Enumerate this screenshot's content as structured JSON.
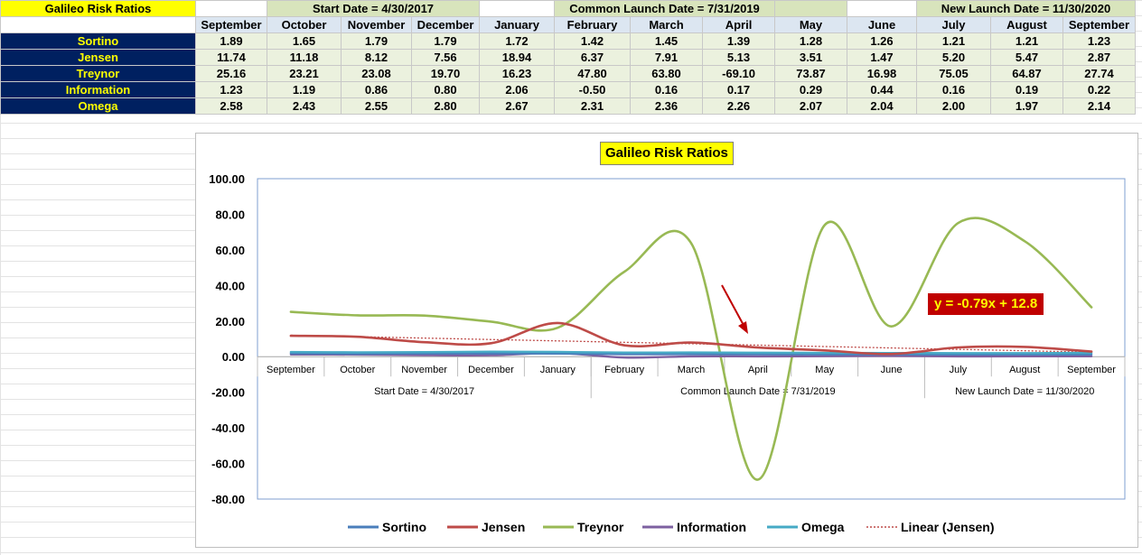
{
  "sheet": {
    "title": "Galileo Risk Ratios",
    "date_bands": {
      "start": "Start Date = 4/30/2017",
      "common": "Common Launch Date = 7/31/2019",
      "new": "New Launch Date = 11/30/2020"
    },
    "months": [
      "September",
      "October",
      "November",
      "December",
      "January",
      "February",
      "March",
      "April",
      "May",
      "June",
      "July",
      "August",
      "September"
    ],
    "rows": [
      {
        "name": "Sortino",
        "values": [
          "1.89",
          "1.65",
          "1.79",
          "1.79",
          "1.72",
          "1.42",
          "1.45",
          "1.39",
          "1.28",
          "1.26",
          "1.21",
          "1.21",
          "1.23"
        ]
      },
      {
        "name": "Jensen",
        "values": [
          "11.74",
          "11.18",
          "8.12",
          "7.56",
          "18.94",
          "6.37",
          "7.91",
          "5.13",
          "3.51",
          "1.47",
          "5.20",
          "5.47",
          "2.87"
        ]
      },
      {
        "name": "Treynor",
        "values": [
          "25.16",
          "23.21",
          "23.08",
          "19.70",
          "16.23",
          "47.80",
          "63.80",
          "-69.10",
          "73.87",
          "16.98",
          "75.05",
          "64.87",
          "27.74"
        ]
      },
      {
        "name": "Information",
        "values": [
          "1.23",
          "1.19",
          "0.86",
          "0.80",
          "2.06",
          "-0.50",
          "0.16",
          "0.17",
          "0.29",
          "0.44",
          "0.16",
          "0.19",
          "0.22"
        ]
      },
      {
        "name": "Omega",
        "values": [
          "2.58",
          "2.43",
          "2.55",
          "2.80",
          "2.67",
          "2.31",
          "2.36",
          "2.26",
          "2.07",
          "2.04",
          "2.00",
          "1.97",
          "2.14"
        ]
      }
    ]
  },
  "chart_data": {
    "type": "line",
    "title": "Galileo Risk Ratios",
    "categories": [
      "September",
      "October",
      "November",
      "December",
      "January",
      "February",
      "March",
      "April",
      "May",
      "June",
      "July",
      "August",
      "September"
    ],
    "category_groups": [
      {
        "label": "Start Date = 4/30/2017",
        "span": 5
      },
      {
        "label": "Common Launch Date = 7/31/2019",
        "span": 5
      },
      {
        "label": "New Launch Date = 11/30/2020",
        "span": 3
      }
    ],
    "series": [
      {
        "name": "Sortino",
        "color": "#4a7ebb",
        "values": [
          1.89,
          1.65,
          1.79,
          1.79,
          1.72,
          1.42,
          1.45,
          1.39,
          1.28,
          1.26,
          1.21,
          1.21,
          1.23
        ]
      },
      {
        "name": "Jensen",
        "color": "#be4b48",
        "values": [
          11.74,
          11.18,
          8.12,
          7.56,
          18.94,
          6.37,
          7.91,
          5.13,
          3.51,
          1.47,
          5.2,
          5.47,
          2.87
        ]
      },
      {
        "name": "Treynor",
        "color": "#98b954",
        "values": [
          25.16,
          23.21,
          23.08,
          19.7,
          16.23,
          47.8,
          63.8,
          -69.1,
          73.87,
          16.98,
          75.05,
          64.87,
          27.74
        ]
      },
      {
        "name": "Information",
        "color": "#7d60a0",
        "values": [
          1.23,
          1.19,
          0.86,
          0.8,
          2.06,
          -0.5,
          0.16,
          0.17,
          0.29,
          0.44,
          0.16,
          0.19,
          0.22
        ]
      },
      {
        "name": "Omega",
        "color": "#46aac5",
        "values": [
          2.58,
          2.43,
          2.55,
          2.8,
          2.67,
          2.31,
          2.36,
          2.26,
          2.07,
          2.04,
          2.0,
          1.97,
          2.14
        ]
      }
    ],
    "trendline": {
      "name": "Linear (Jensen)",
      "of": "Jensen",
      "color": "#be4b48",
      "slope": -0.79,
      "intercept": 12.8,
      "equation_label": "y = -0.79x + 12.8"
    },
    "ylim": [
      -80,
      100
    ],
    "yticks": [
      "100.00",
      "80.00",
      "60.00",
      "40.00",
      "20.00",
      "0.00",
      "-20.00",
      "-40.00",
      "-60.00",
      "-80.00"
    ],
    "ytick_values": [
      100,
      80,
      60,
      40,
      20,
      0,
      -20,
      -40,
      -60,
      -80
    ],
    "grid": false,
    "legend_position": "bottom",
    "annotation": {
      "type": "arrow",
      "color": "#c00000",
      "points_to": "April"
    }
  }
}
